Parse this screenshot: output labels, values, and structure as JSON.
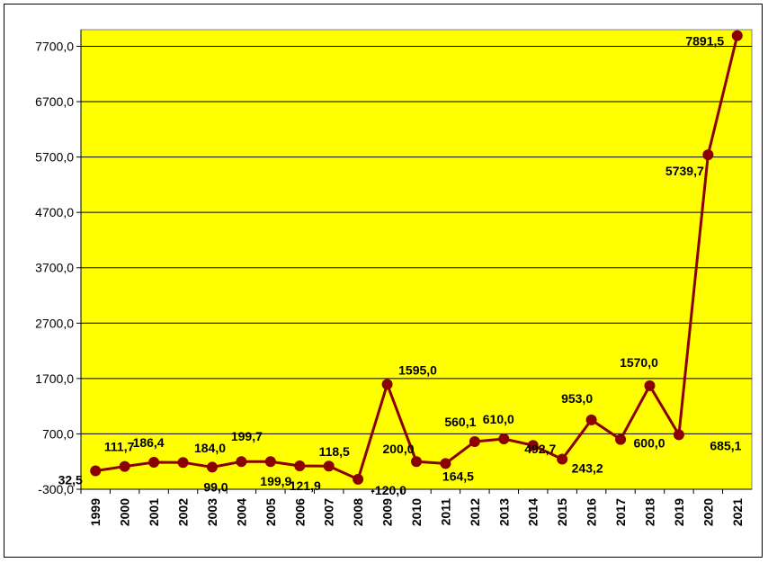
{
  "chart_data": {
    "type": "line",
    "title": "",
    "xlabel": "",
    "ylabel": "",
    "ylim": [
      -300,
      8000
    ],
    "yticks": [
      "-300,0",
      "700,0",
      "1700,0",
      "2700,0",
      "3700,0",
      "4700,0",
      "5700,0",
      "6700,0",
      "7700,0"
    ],
    "grid": true,
    "legend": "none",
    "categories": [
      "1999",
      "2000",
      "2001",
      "2002",
      "2003",
      "2004",
      "2005",
      "2006",
      "2007",
      "2008",
      "2009",
      "2010",
      "2011",
      "2012",
      "2013",
      "2014",
      "2015",
      "2016",
      "2017",
      "2018",
      "2019",
      "2020",
      "2021"
    ],
    "values": [
      32.5,
      111.7,
      186.4,
      184.0,
      99.0,
      199.7,
      199.9,
      121.9,
      118.5,
      -120.0,
      1595.0,
      200.0,
      164.5,
      560.1,
      610.0,
      492.7,
      243.2,
      953.0,
      600.0,
      1570.0,
      685.1,
      5739.7,
      7891.5
    ],
    "labels": [
      "32,5",
      "111,7",
      "186,4",
      "184,0",
      "99,0",
      "199,7",
      "199,9",
      "121,9",
      "118,5",
      "-120,0",
      "1595,0",
      "200,0",
      "164,5",
      "560,1",
      "610,0",
      "492,7",
      "243,2",
      "953,0",
      "600,0",
      "1570,0",
      "685,1",
      "5739,7",
      "7891,5"
    ],
    "plot_background": "#FFFF00",
    "line_color": "#8B0000"
  }
}
